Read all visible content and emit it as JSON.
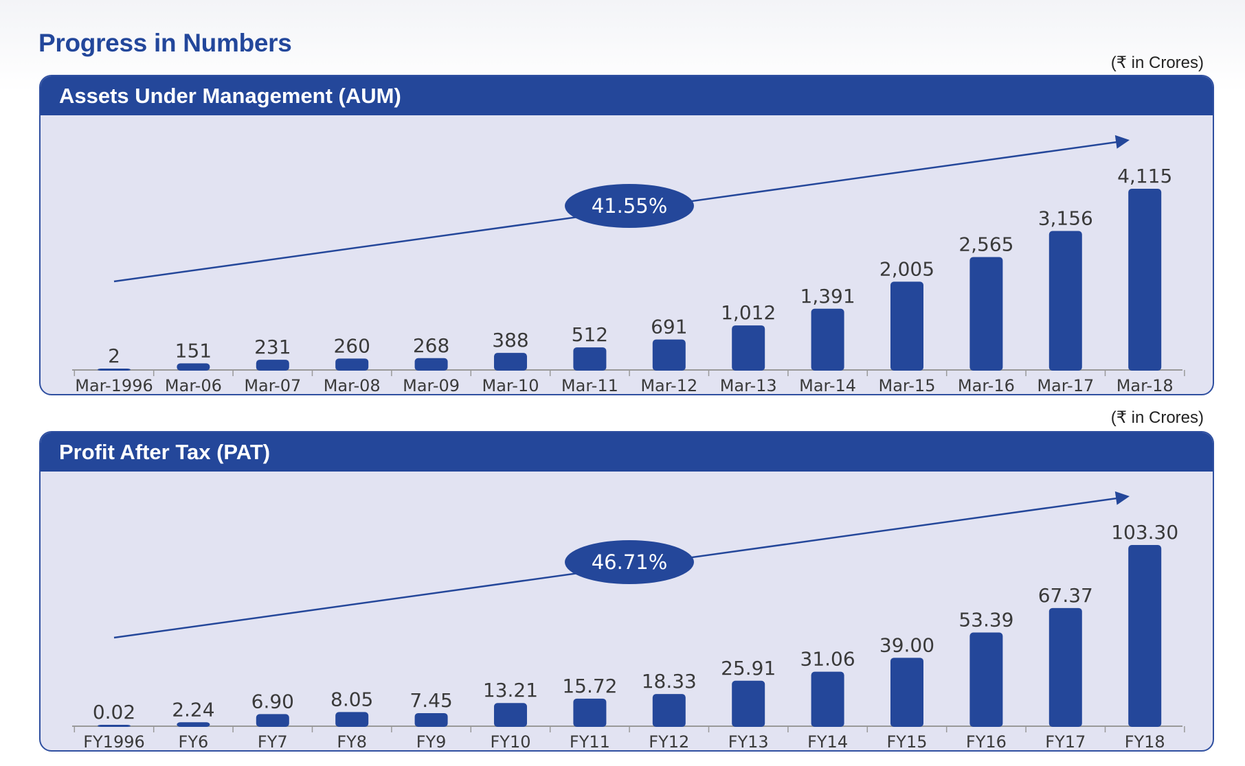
{
  "page": {
    "title": "Progress in Numbers"
  },
  "colors": {
    "bar": "#24479a",
    "panel_bg": "#e2e3f2",
    "header_bg": "#24479a",
    "axis": "#999999",
    "title": "#23479b"
  },
  "chart_data": [
    {
      "type": "bar",
      "title": "Assets Under Management (AUM)",
      "unit_note": "(₹ in Crores)",
      "categories": [
        "Mar-1996",
        "Mar-06",
        "Mar-07",
        "Mar-08",
        "Mar-09",
        "Mar-10",
        "Mar-11",
        "Mar-12",
        "Mar-13",
        "Mar-14",
        "Mar-15",
        "Mar-16",
        "Mar-17",
        "Mar-18"
      ],
      "values": [
        2,
        151,
        231,
        260,
        268,
        388,
        512,
        691,
        1012,
        1391,
        2005,
        2565,
        3156,
        4115
      ],
      "value_labels": [
        "2",
        "151",
        "231",
        "260",
        "268",
        "388",
        "512",
        "691",
        "1,012",
        "1,391",
        "2,005",
        "2,565",
        "3,156",
        "4,115"
      ],
      "trend": {
        "label": "41.55%"
      },
      "grid": false,
      "legend": "none"
    },
    {
      "type": "bar",
      "title": "Profit After Tax (PAT)",
      "unit_note": "(₹ in Crores)",
      "categories": [
        "FY1996",
        "FY6",
        "FY7",
        "FY8",
        "FY9",
        "FY10",
        "FY11",
        "FY12",
        "FY13",
        "FY14",
        "FY15",
        "FY16",
        "FY17",
        "FY18"
      ],
      "values": [
        0.02,
        2.24,
        6.9,
        8.05,
        7.45,
        13.21,
        15.72,
        18.33,
        25.91,
        31.06,
        39.0,
        53.39,
        67.37,
        103.3
      ],
      "value_labels": [
        "0.02",
        "2.24",
        "6.90",
        "8.05",
        "7.45",
        "13.21",
        "15.72",
        "18.33",
        "25.91",
        "31.06",
        "39.00",
        "53.39",
        "67.37",
        "103.30"
      ],
      "trend": {
        "label": "46.71%"
      },
      "grid": false,
      "legend": "none"
    }
  ]
}
